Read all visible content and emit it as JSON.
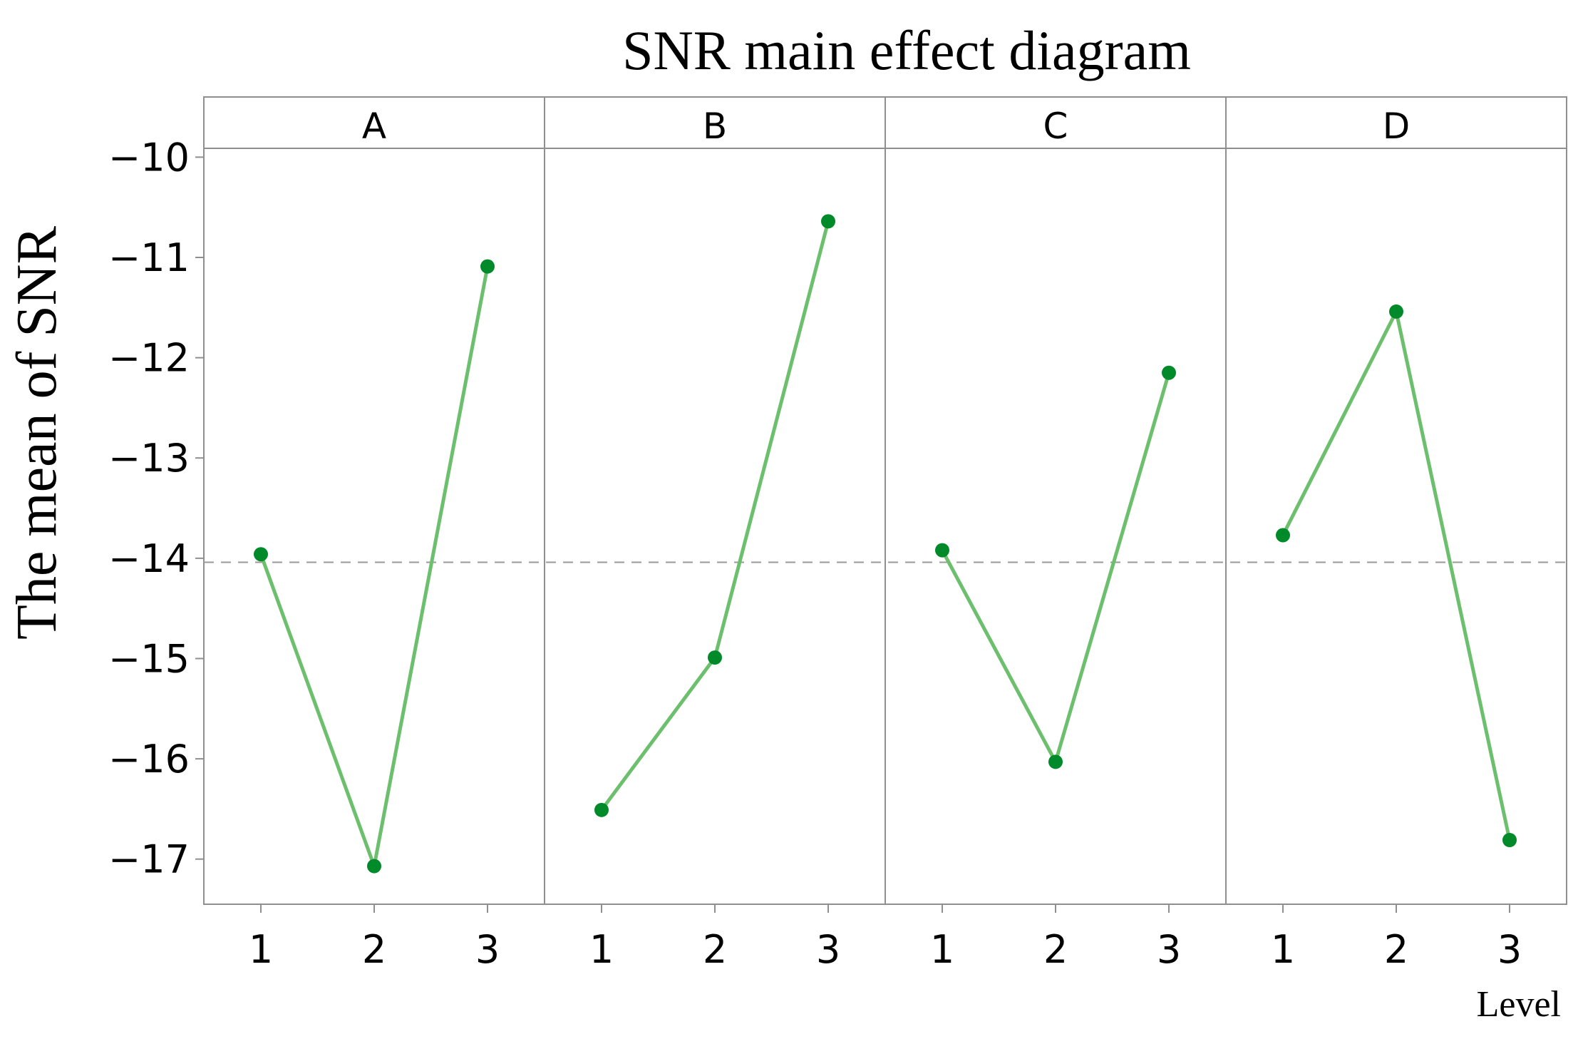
{
  "chart_data": {
    "type": "line",
    "title": "SNR main effect diagram",
    "ylabel": "The mean of SNR",
    "xlabel": "Level",
    "ylim": [
      -17.45,
      -9.4
    ],
    "y_ticks": [
      -10,
      -11,
      -12,
      -13,
      -14,
      -15,
      -16,
      -17
    ],
    "y_tick_labels": [
      "−10",
      "−11",
      "−12",
      "−13",
      "−14",
      "−15",
      "−16",
      "−17"
    ],
    "x_levels": [
      1,
      2,
      3
    ],
    "reference_line": -14.04,
    "grid": false,
    "line_color": "#6cbf6c",
    "marker_color": "#008a2a",
    "panels": [
      {
        "label": "A",
        "values": [
          -13.96,
          -17.07,
          -11.09
        ]
      },
      {
        "label": "B",
        "values": [
          -16.51,
          -14.99,
          -10.64
        ]
      },
      {
        "label": "C",
        "values": [
          -13.92,
          -16.03,
          -12.15
        ]
      },
      {
        "label": "D",
        "values": [
          -13.77,
          -11.54,
          -16.81
        ]
      }
    ]
  }
}
